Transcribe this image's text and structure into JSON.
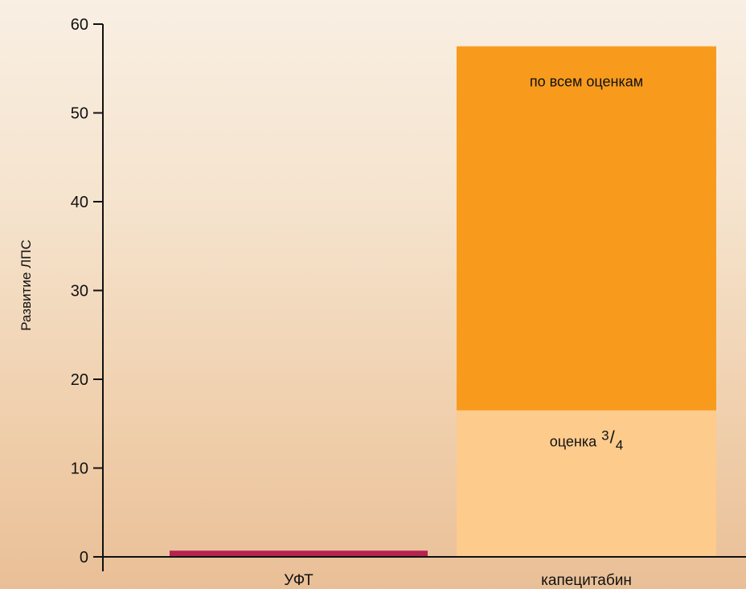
{
  "chart_data": {
    "type": "bar",
    "stacked": true,
    "ylabel": "Развитие ЛПС",
    "xlabel": "",
    "ylim": [
      0,
      60
    ],
    "yticks": [
      0,
      10,
      20,
      30,
      40,
      50,
      60
    ],
    "grid": false,
    "categories": [
      "УФТ",
      "капецитабин"
    ],
    "bars": [
      {
        "category": "УФТ",
        "segments": [
          {
            "value": 0.7,
            "color": "#b5234f"
          }
        ]
      },
      {
        "category": "капецитабин",
        "segments": [
          {
            "value": 16.5,
            "label": "оценка",
            "label_sup": "3",
            "label_sub": "4",
            "color": "#fdcb8c"
          },
          {
            "value": 41,
            "label": "по всем оценкам",
            "color": "#f89b1d"
          }
        ]
      }
    ]
  }
}
